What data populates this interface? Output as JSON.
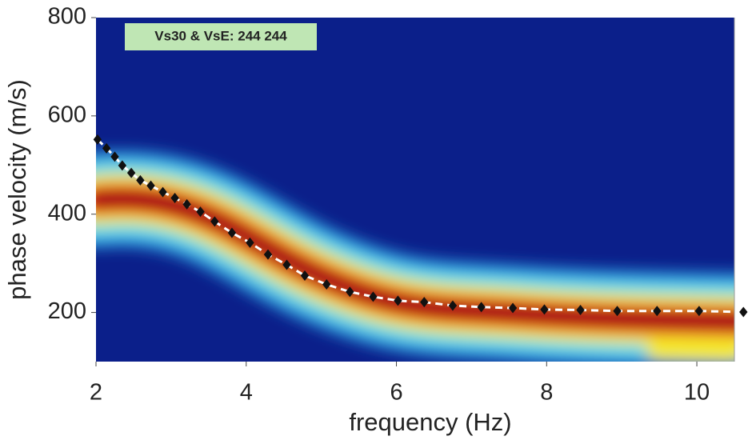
{
  "chart_data": {
    "type": "scatter",
    "annotation": "Vs30 & VsE: 244  244",
    "x_label": "frequency (Hz)",
    "y_label": "phase velocity (m/s)",
    "x": [
      2.02,
      2.14,
      2.25,
      2.35,
      2.47,
      2.59,
      2.73,
      2.89,
      3.05,
      3.21,
      3.39,
      3.58,
      3.81,
      4.05,
      4.29,
      4.54,
      4.78,
      5.07,
      5.38,
      5.69,
      6.02,
      6.37,
      6.75,
      7.13,
      7.55,
      7.97,
      8.45,
      8.94,
      9.47,
      10.03,
      10.62
    ],
    "values": [
      552,
      534,
      517,
      499,
      484,
      469,
      458,
      445,
      433,
      420,
      405,
      385,
      362,
      342,
      318,
      297,
      275,
      257,
      242,
      232,
      224,
      221,
      214,
      211,
      209,
      206,
      205,
      203,
      203,
      203,
      201
    ],
    "color": "#111111",
    "xlim": [
      2,
      10.5
    ],
    "xticks": [
      2,
      4,
      6,
      8,
      10
    ],
    "ylim": [
      100,
      800
    ],
    "yticks": [
      200,
      400,
      600,
      800
    ]
  }
}
